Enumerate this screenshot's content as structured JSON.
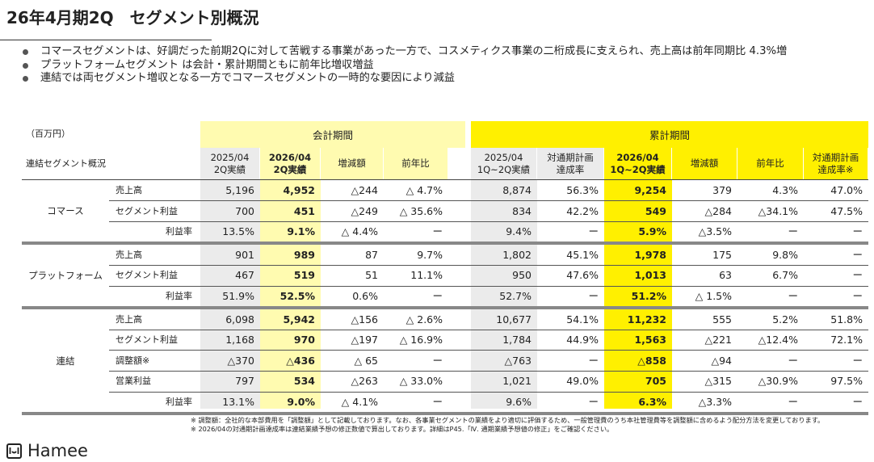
{
  "title": "26年4月期2Q　セグメント別概況",
  "bullets": [
    "コマースセグメントは、好調だった前期2Qに対して苦戦する事業があった一方で、コスメティクス事業の二桁成長に支えられ、売上高は前年同期比 4.3%増",
    "プラットフォームセグメント は会計・累計期間ともに前年比増収増益",
    "連結では両セグメント増収となる一方でコマースセグメントの一時的な要因により減益"
  ],
  "table": {
    "unit": "（百万円）",
    "corner": "連結セグメント概況",
    "group_left": "会計期間",
    "group_right": "累計期間",
    "headers": [
      "2025/04\n2Q実績",
      "2026/04\n2Q実績",
      "増減額",
      "前年比",
      "2025/04\n1Q~2Q実績",
      "対通期計画\n達成率",
      "2026/04\n1Q~2Q実績",
      "増減額",
      "前年比",
      "対通期計画\n達成率※"
    ],
    "segments": [
      {
        "name": "コマース",
        "rows": [
          {
            "label": "売上高",
            "values": [
              "5,196",
              "4,952",
              "△244",
              "△ 4.7%",
              "8,874",
              "56.3%",
              "9,254",
              "379",
              "4.3%",
              "47.0%"
            ]
          },
          {
            "label": "セグメント利益",
            "values": [
              "700",
              "451",
              "△249",
              "△ 35.6%",
              "834",
              "42.2%",
              "549",
              "△284",
              "△34.1%",
              "47.5%"
            ]
          },
          {
            "label": "利益率",
            "rate": true,
            "values": [
              "13.5%",
              "9.1%",
              "△ 4.4%",
              "ー",
              "9.4%",
              "ー",
              "5.9%",
              "△3.5%",
              "ー",
              "ー"
            ]
          }
        ]
      },
      {
        "name": "プラットフォーム",
        "rows": [
          {
            "label": "売上高",
            "values": [
              "901",
              "989",
              "87",
              "9.7%",
              "1,802",
              "45.1%",
              "1,978",
              "175",
              "9.8%",
              "ー"
            ]
          },
          {
            "label": "セグメント利益",
            "values": [
              "467",
              "519",
              "51",
              "11.1%",
              "950",
              "47.6%",
              "1,013",
              "63",
              "6.7%",
              "ー"
            ]
          },
          {
            "label": "利益率",
            "rate": true,
            "values": [
              "51.9%",
              "52.5%",
              "0.6%",
              "ー",
              "52.7%",
              "ー",
              "51.2%",
              "△ 1.5%",
              "ー",
              "ー"
            ]
          }
        ]
      },
      {
        "name": "連結",
        "rows": [
          {
            "label": "売上高",
            "values": [
              "6,098",
              "5,942",
              "△156",
              "△ 2.6%",
              "10,677",
              "54.1%",
              "11,232",
              "555",
              "5.2%",
              "51.8%"
            ]
          },
          {
            "label": "セグメント利益",
            "values": [
              "1,168",
              "970",
              "△197",
              "△ 16.9%",
              "1,784",
              "44.9%",
              "1,563",
              "△221",
              "△12.4%",
              "72.1%"
            ]
          },
          {
            "label": "調整額※",
            "values": [
              "△370",
              "△436",
              "△ 65",
              "ー",
              "△763",
              "ー",
              "△858",
              "△94",
              "ー",
              "ー"
            ]
          },
          {
            "label": "営業利益",
            "values": [
              "797",
              "534",
              "△263",
              "△ 33.0%",
              "1,021",
              "49.0%",
              "705",
              "△315",
              "△30.9%",
              "97.5%"
            ]
          },
          {
            "label": "利益率",
            "rate": true,
            "values": [
              "13.1%",
              "9.0%",
              "△ 4.1%",
              "ー",
              "9.6%",
              "ー",
              "6.3%",
              "△3.3%",
              "ー",
              "ー"
            ]
          }
        ]
      }
    ]
  },
  "notes": [
    "※ 調整額：全社的な本部費用を「調整額」として記載しております。なお、各事業セグメントの業績をより適切に評価するため、一般管理費のうち本社管理費等を調整額に含めるよう配分方法を変更しております。",
    "※ 2026/04の対通期計画達成率は連結業績予想の修正数値で算出しております。詳細はP45.「Ⅳ. 通期業績予想値の修正」をご確認ください。"
  ],
  "logo": {
    "text": "Hamee",
    "mark": "I~I"
  },
  "colors": {
    "yellow": "#fff000",
    "light_yellow": "#fffbb0",
    "gray": "#ebebeb"
  }
}
